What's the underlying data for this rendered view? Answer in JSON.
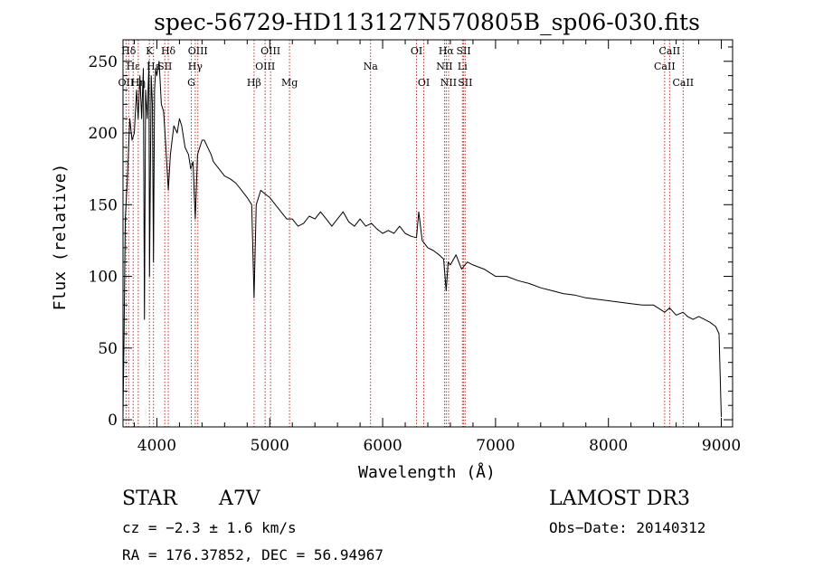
{
  "chart_data": {
    "type": "line",
    "title": "spec-56729-HD113127N570805B_sp06-030.fits",
    "xlabel": "Wavelength (Å)",
    "ylabel": "Flux (relative)",
    "xlim": [
      3700,
      9100
    ],
    "ylim": [
      -5,
      265
    ],
    "xticks": [
      4000,
      5000,
      6000,
      7000,
      8000,
      9000
    ],
    "xtick_labels": [
      "4000",
      "5000",
      "6000",
      "7000",
      "8000",
      "9000"
    ],
    "yticks": [
      0,
      50,
      100,
      150,
      200,
      250
    ],
    "ytick_labels": [
      "0",
      "50",
      "100",
      "150",
      "200",
      "250"
    ],
    "grid": false,
    "legend": "none",
    "series": [
      {
        "name": "spectrum",
        "color": "#000000",
        "x": [
          3700,
          3710,
          3720,
          3740,
          3760,
          3780,
          3800,
          3820,
          3835,
          3850,
          3865,
          3880,
          3890,
          3900,
          3915,
          3930,
          3935,
          3950,
          3960,
          3970,
          3980,
          3990,
          4000,
          4020,
          4040,
          4060,
          4080,
          4101,
          4120,
          4150,
          4180,
          4200,
          4220,
          4250,
          4280,
          4300,
          4320,
          4340,
          4360,
          4380,
          4400,
          4420,
          4450,
          4480,
          4500,
          4550,
          4600,
          4650,
          4700,
          4750,
          4800,
          4840,
          4861,
          4880,
          4900,
          4920,
          4950,
          5000,
          5050,
          5100,
          5150,
          5200,
          5250,
          5300,
          5350,
          5400,
          5450,
          5500,
          5550,
          5600,
          5650,
          5700,
          5750,
          5800,
          5850,
          5900,
          5950,
          6000,
          6050,
          6100,
          6150,
          6200,
          6250,
          6300,
          6320,
          6350,
          6400,
          6450,
          6500,
          6540,
          6563,
          6580,
          6600,
          6650,
          6700,
          6750,
          6800,
          6900,
          7000,
          7100,
          7200,
          7300,
          7400,
          7500,
          7600,
          7700,
          7800,
          7900,
          8000,
          8100,
          8200,
          8300,
          8400,
          8498,
          8542,
          8600,
          8662,
          8700,
          8750,
          8800,
          8850,
          8900,
          8950,
          8980,
          9000
        ],
        "y": [
          3,
          60,
          140,
          170,
          210,
          195,
          200,
          230,
          210,
          240,
          210,
          245,
          70,
          230,
          210,
          250,
          100,
          240,
          220,
          110,
          230,
          245,
          240,
          250,
          220,
          215,
          190,
          160,
          185,
          205,
          200,
          210,
          205,
          190,
          185,
          175,
          180,
          140,
          185,
          190,
          195,
          195,
          190,
          185,
          180,
          175,
          170,
          168,
          165,
          160,
          155,
          150,
          85,
          150,
          155,
          160,
          158,
          155,
          150,
          145,
          140,
          140,
          135,
          137,
          142,
          140,
          145,
          140,
          135,
          140,
          145,
          138,
          135,
          140,
          135,
          137,
          133,
          130,
          132,
          130,
          135,
          130,
          128,
          127,
          145,
          125,
          120,
          118,
          115,
          112,
          90,
          110,
          108,
          115,
          105,
          110,
          108,
          105,
          100,
          100,
          97,
          95,
          92,
          90,
          88,
          87,
          85,
          84,
          83,
          82,
          81,
          80,
          80,
          75,
          78,
          73,
          75,
          72,
          70,
          72,
          70,
          68,
          65,
          60,
          2
        ]
      }
    ],
    "line_markers": [
      {
        "label": "Hδ",
        "x": 3750,
        "row": 1
      },
      {
        "label": "Hε",
        "x": 3790,
        "row": 2
      },
      {
        "label": "OII",
        "x": 3727,
        "row": 3
      },
      {
        "label": "Hη",
        "x": 3835,
        "row": 3
      },
      {
        "label": "K",
        "x": 3934,
        "row": 1
      },
      {
        "label": "Hε",
        "x": 3970,
        "row": 2
      },
      {
        "label": "SII",
        "x": 4070,
        "row": 2
      },
      {
        "label": "Hδ",
        "x": 4101,
        "row": 1
      },
      {
        "label": "OIII",
        "x": 4363,
        "row": 1
      },
      {
        "label": "Hγ",
        "x": 4340,
        "row": 2
      },
      {
        "label": "G",
        "x": 4305,
        "row": 3
      },
      {
        "label": "Hβ",
        "x": 4861,
        "row": 3
      },
      {
        "label": "OIII",
        "x": 5007,
        "row": 1
      },
      {
        "label": "OIII",
        "x": 4959,
        "row": 2
      },
      {
        "label": "Mg",
        "x": 5175,
        "row": 3
      },
      {
        "label": "Na",
        "x": 5893,
        "row": 2
      },
      {
        "label": "OI",
        "x": 6300,
        "row": 1
      },
      {
        "label": "OI",
        "x": 6364,
        "row": 3
      },
      {
        "label": "Hα",
        "x": 6563,
        "row": 1
      },
      {
        "label": "NII",
        "x": 6548,
        "row": 2
      },
      {
        "label": "NII",
        "x": 6584,
        "row": 3
      },
      {
        "label": "SII",
        "x": 6717,
        "row": 1
      },
      {
        "label": "Li",
        "x": 6707,
        "row": 2
      },
      {
        "label": "SII",
        "x": 6731,
        "row": 3
      },
      {
        "label": "CaII",
        "x": 8542,
        "row": 1
      },
      {
        "label": "CaII",
        "x": 8498,
        "row": 2
      },
      {
        "label": "CaII",
        "x": 8662,
        "row": 3
      }
    ],
    "marker_color": "#c03030"
  },
  "info": {
    "class_label": "STAR",
    "subclass": "A7V",
    "survey": "LAMOST DR3",
    "cz": "cz = −2.3 ± 1.6 km/s",
    "obs_date": "Obs−Date: 20140312",
    "radec": "RA = 176.37852, DEC =  56.94967"
  }
}
